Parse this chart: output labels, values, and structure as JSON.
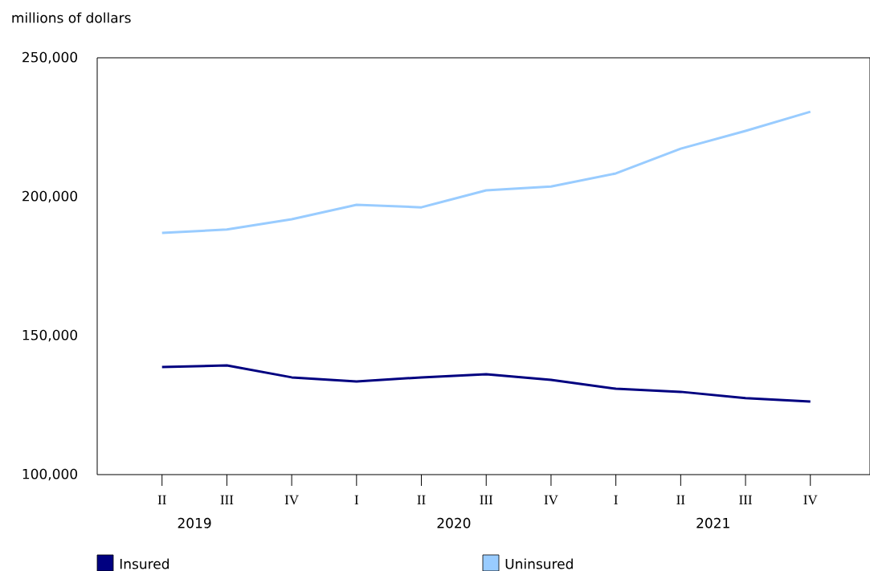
{
  "chart_data": {
    "type": "line",
    "ylabel": "millions of dollars",
    "categories": [
      "II",
      "III",
      "IV",
      "I",
      "II",
      "III",
      "IV",
      "I",
      "II",
      "III",
      "IV"
    ],
    "series": [
      {
        "name": "Insured",
        "color": "#000080",
        "values": [
          138700,
          139300,
          135000,
          133500,
          135000,
          136100,
          134100,
          130900,
          129800,
          127500,
          126300
        ]
      },
      {
        "name": "Uninsured",
        "color": "#99ccff",
        "values": [
          187000,
          188200,
          191900,
          197100,
          196200,
          202300,
          203700,
          208400,
          217300,
          223700,
          230600
        ]
      }
    ],
    "ylim": [
      100000,
      250000
    ],
    "yticks": [
      {
        "value": 100000,
        "label": "100,000"
      },
      {
        "value": 150000,
        "label": "150,000"
      },
      {
        "value": 200000,
        "label": "200,000"
      },
      {
        "value": 250000,
        "label": "250,000"
      }
    ],
    "annotations": [
      "2019",
      "2020",
      "2021"
    ],
    "grid": false,
    "legend": "bottom",
    "marker": "none",
    "line_style": "solid"
  }
}
